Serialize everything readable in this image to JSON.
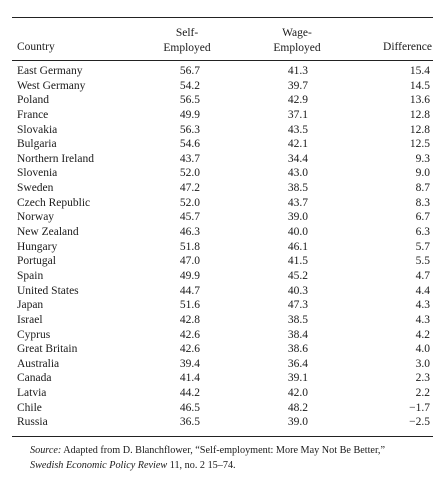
{
  "table": {
    "headers": {
      "country": "Country",
      "self_employed": [
        "Self-",
        "Employed"
      ],
      "wage_employed": [
        "Wage-",
        "Employed"
      ],
      "difference": "Difference"
    },
    "rows": [
      {
        "country": "East Germany",
        "self": "56.7",
        "wage": "41.3",
        "diff": "15.4"
      },
      {
        "country": "West Germany",
        "self": "54.2",
        "wage": "39.7",
        "diff": "14.5"
      },
      {
        "country": "Poland",
        "self": "56.5",
        "wage": "42.9",
        "diff": "13.6"
      },
      {
        "country": "France",
        "self": "49.9",
        "wage": "37.1",
        "diff": "12.8"
      },
      {
        "country": "Slovakia",
        "self": "56.3",
        "wage": "43.5",
        "diff": "12.8"
      },
      {
        "country": "Bulgaria",
        "self": "54.6",
        "wage": "42.1",
        "diff": "12.5"
      },
      {
        "country": "Northern Ireland",
        "self": "43.7",
        "wage": "34.4",
        "diff": "9.3"
      },
      {
        "country": "Slovenia",
        "self": "52.0",
        "wage": "43.0",
        "diff": "9.0"
      },
      {
        "country": "Sweden",
        "self": "47.2",
        "wage": "38.5",
        "diff": "8.7"
      },
      {
        "country": "Czech Republic",
        "self": "52.0",
        "wage": "43.7",
        "diff": "8.3"
      },
      {
        "country": "Norway",
        "self": "45.7",
        "wage": "39.0",
        "diff": "6.7"
      },
      {
        "country": "New Zealand",
        "self": "46.3",
        "wage": "40.0",
        "diff": "6.3"
      },
      {
        "country": "Hungary",
        "self": "51.8",
        "wage": "46.1",
        "diff": "5.7"
      },
      {
        "country": "Portugal",
        "self": "47.0",
        "wage": "41.5",
        "diff": "5.5"
      },
      {
        "country": "Spain",
        "self": "49.9",
        "wage": "45.2",
        "diff": "4.7"
      },
      {
        "country": "United States",
        "self": "44.7",
        "wage": "40.3",
        "diff": "4.4"
      },
      {
        "country": "Japan",
        "self": "51.6",
        "wage": "47.3",
        "diff": "4.3"
      },
      {
        "country": "Israel",
        "self": "42.8",
        "wage": "38.5",
        "diff": "4.3"
      },
      {
        "country": "Cyprus",
        "self": "42.6",
        "wage": "38.4",
        "diff": "4.2"
      },
      {
        "country": "Great Britain",
        "self": "42.6",
        "wage": "38.6",
        "diff": "4.0"
      },
      {
        "country": "Australia",
        "self": "39.4",
        "wage": "36.4",
        "diff": "3.0"
      },
      {
        "country": "Canada",
        "self": "41.4",
        "wage": "39.1",
        "diff": "2.3"
      },
      {
        "country": "Latvia",
        "self": "44.2",
        "wage": "42.0",
        "diff": "2.2"
      },
      {
        "country": "Chile",
        "self": "46.5",
        "wage": "48.2",
        "diff": "−1.7"
      },
      {
        "country": "Russia",
        "self": "36.5",
        "wage": "39.0",
        "diff": "−2.5"
      }
    ]
  },
  "source": {
    "label": "Source:",
    "text_1": " Adapted from D. Blanchflower, “Self-employment: More May Not Be Better,”",
    "journal": "Swedish Economic Policy Review",
    "text_2": " 11, no. 2 15–74."
  }
}
